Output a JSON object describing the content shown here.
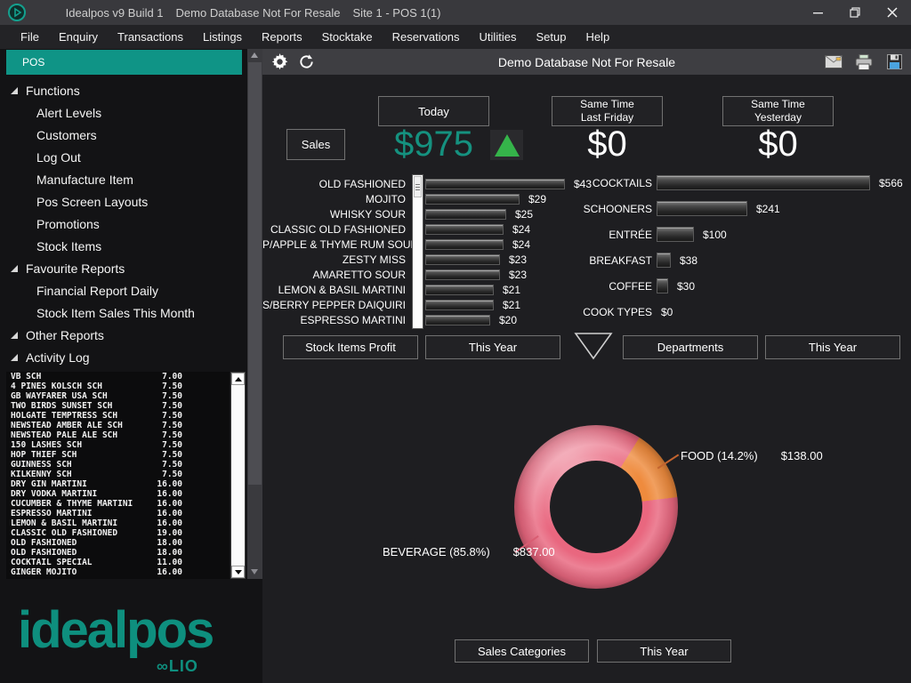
{
  "window": {
    "title_segments": [
      "Idealpos v9 Build 1",
      "Demo Database Not For Resale",
      "Site 1 - POS 1(1)"
    ]
  },
  "menu": {
    "items": [
      "File",
      "Enquiry",
      "Transactions",
      "Listings",
      "Reports",
      "Stocktake",
      "Reservations",
      "Utilities",
      "Setup",
      "Help"
    ]
  },
  "sidebar": {
    "pos_label": "POS",
    "tree": [
      {
        "label": "Functions",
        "items": [
          "Alert Levels",
          "Customers",
          "Log Out",
          "Manufacture Item",
          "Pos Screen Layouts",
          "Promotions",
          "Stock Items"
        ]
      },
      {
        "label": "Favourite Reports",
        "items": [
          "Financial Report Daily",
          "Stock Item Sales This Month"
        ]
      },
      {
        "label": "Other Reports",
        "items": []
      },
      {
        "label": "Activity Log",
        "items": []
      }
    ],
    "activity_log": [
      {
        "name": "VB SCH",
        "price": "7.00"
      },
      {
        "name": "4 PINES KOLSCH SCH",
        "price": "7.50"
      },
      {
        "name": "GB WAYFARER USA SCH",
        "price": "7.50"
      },
      {
        "name": "TWO BIRDS SUNSET SCH",
        "price": "7.50"
      },
      {
        "name": "HOLGATE TEMPTRESS SCH",
        "price": "7.50"
      },
      {
        "name": "NEWSTEAD AMBER ALE SCH",
        "price": "7.50"
      },
      {
        "name": "NEWSTEAD PALE ALE SCH",
        "price": "7.50"
      },
      {
        "name": "150 LASHES SCH",
        "price": "7.50"
      },
      {
        "name": "HOP THIEF SCH",
        "price": "7.50"
      },
      {
        "name": "GUINNESS SCH",
        "price": "7.50"
      },
      {
        "name": "KILKENNY SCH",
        "price": "7.50"
      },
      {
        "name": "DRY GIN MARTINI",
        "price": "16.00"
      },
      {
        "name": "DRY VODKA MARTINI",
        "price": "16.00"
      },
      {
        "name": "CUCUMBER & THYME MARTINI",
        "price": "16.00"
      },
      {
        "name": "ESPRESSO MARTINI",
        "price": "16.00"
      },
      {
        "name": "LEMON & BASIL MARTINI",
        "price": "16.00"
      },
      {
        "name": "CLASSIC OLD FASHIONED",
        "price": "19.00"
      },
      {
        "name": "OLD FASHIONED",
        "price": "18.00"
      },
      {
        "name": "OLD FASHIONED",
        "price": "18.00"
      },
      {
        "name": "COCKTAIL SPECIAL",
        "price": "11.00"
      },
      {
        "name": "GINGER MOJITO",
        "price": "16.00"
      }
    ],
    "logo_text": "idealpos",
    "logo_sub": "∞LIO"
  },
  "toolbar": {
    "title": "Demo Database Not For Resale"
  },
  "summary": {
    "sales_label": "Sales",
    "today": {
      "label": "Today",
      "value": "$975",
      "trend": "up"
    },
    "last_friday": {
      "label_line1": "Same Time",
      "label_line2": "Last Friday",
      "value": "$0"
    },
    "yesterday": {
      "label_line1": "Same Time",
      "label_line2": "Yesterday",
      "value": "$0"
    }
  },
  "chart_data": [
    {
      "type": "bar",
      "orientation": "horizontal",
      "title": "Stock Items Profit",
      "period": "This Year",
      "categories": [
        "OLD FASHIONED",
        "MOJITO",
        "WHISKY SOUR",
        "CLASSIC OLD FASHIONED",
        "P/APPLE & THYME RUM SOUR",
        "ZESTY MISS",
        "AMARETTO SOUR",
        "LEMON & BASIL MARTINI",
        "S/BERRY PEPPER DAIQUIRI",
        "ESPRESSO MARTINI"
      ],
      "values": [
        43,
        29,
        25,
        24,
        24,
        23,
        23,
        21,
        21,
        20
      ],
      "value_prefix": "$",
      "xlim": [
        0,
        43
      ],
      "grid": false,
      "value_labels_shown": true
    },
    {
      "type": "bar",
      "orientation": "horizontal",
      "title": "Departments",
      "period": "This Year",
      "categories": [
        "COCKTAILS",
        "SCHOONERS",
        "ENTRÉE",
        "BREAKFAST",
        "COFFEE",
        "COOK TYPES"
      ],
      "values": [
        566,
        241,
        100,
        38,
        30,
        0
      ],
      "value_prefix": "$",
      "xlim": [
        0,
        566
      ],
      "grid": false,
      "value_labels_shown": true
    },
    {
      "type": "pie",
      "subtype": "donut",
      "title": "Sales Categories",
      "period": "This Year",
      "slices": [
        {
          "name": "BEVERAGE",
          "pct": 85.8,
          "amount": 837.0,
          "label": "BEVERAGE (85.8%)",
          "amount_label": "$837.00",
          "color": "#e9677f"
        },
        {
          "name": "FOOD",
          "pct": 14.2,
          "amount": 138.0,
          "label": "FOOD (14.2%)",
          "amount_label": "$138.00",
          "color": "#ef8b3d"
        }
      ],
      "legend_position": "callout-labels"
    }
  ],
  "colors": {
    "accent_teal": "#0f9486",
    "money_teal": "#15917f",
    "trend_green": "#35b44a",
    "beverage_pink": "#e9677f",
    "food_orange": "#ef8b3d"
  }
}
